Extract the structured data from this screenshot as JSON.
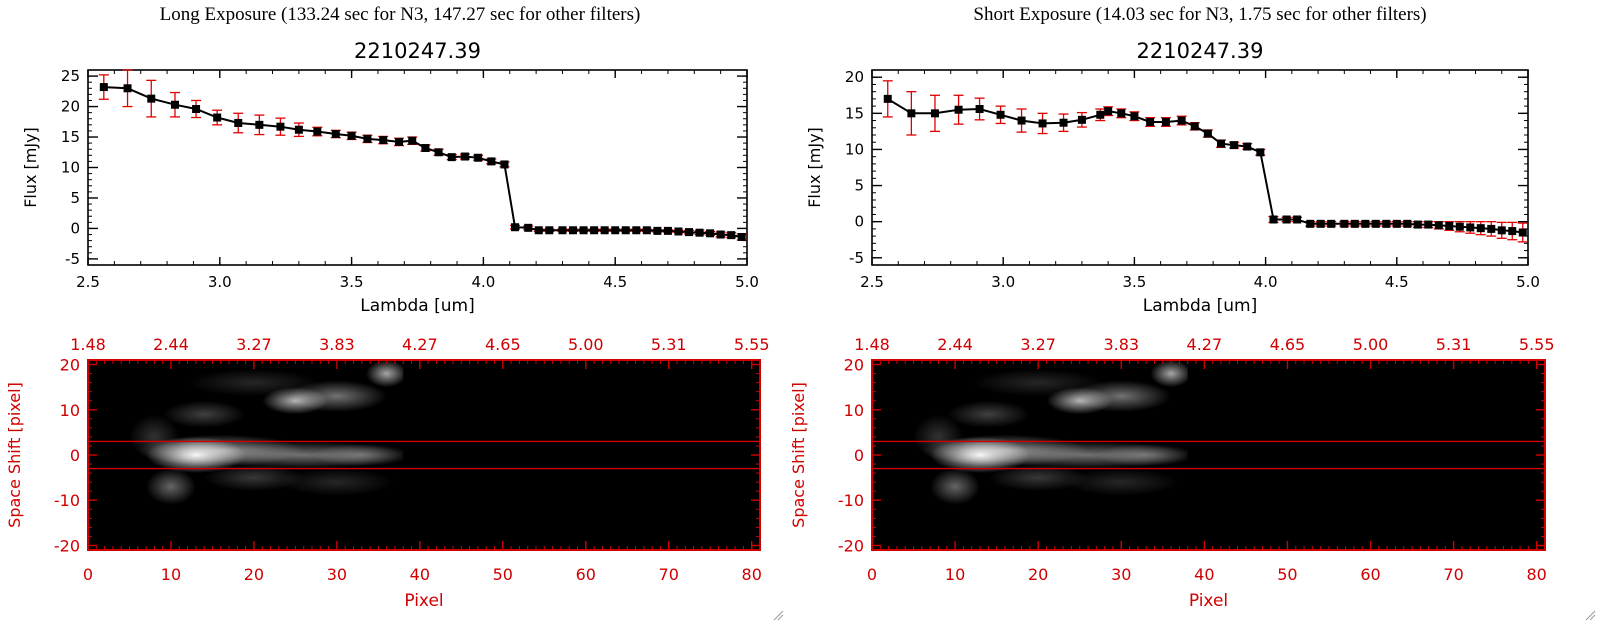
{
  "panels": [
    {
      "title": "Long Exposure (133.24 sec for N3, 147.27 sec for other filters)",
      "spectrum": {
        "type": "line",
        "title": "2210247.39",
        "xlabel": "Lambda [um]",
        "ylabel": "Flux [mJy]",
        "xlim": [
          2.5,
          5.0
        ],
        "ylim": [
          -6,
          26
        ],
        "xticks": [
          "2.5",
          "3.0",
          "3.5",
          "4.0",
          "4.5",
          "5.0"
        ],
        "yticks": [
          "-5",
          "0",
          "5",
          "10",
          "15",
          "20",
          "25"
        ],
        "x": [
          2.56,
          2.65,
          2.74,
          2.83,
          2.91,
          2.99,
          3.07,
          3.15,
          3.23,
          3.3,
          3.37,
          3.44,
          3.5,
          3.56,
          3.62,
          3.68,
          3.73,
          3.78,
          3.83,
          3.88,
          3.93,
          3.98,
          4.03,
          4.08,
          4.12,
          4.17,
          4.21,
          4.25,
          4.3,
          4.34,
          4.38,
          4.42,
          4.46,
          4.5,
          4.54,
          4.58,
          4.62,
          4.66,
          4.7,
          4.74,
          4.78,
          4.82,
          4.86,
          4.9,
          4.94,
          4.98
        ],
        "y": [
          23.2,
          23.0,
          21.3,
          20.3,
          19.6,
          18.2,
          17.3,
          17.0,
          16.7,
          16.2,
          15.9,
          15.5,
          15.2,
          14.7,
          14.5,
          14.2,
          14.4,
          13.2,
          12.5,
          11.7,
          11.8,
          11.6,
          11.0,
          10.5,
          0.2,
          0.1,
          -0.3,
          -0.3,
          -0.3,
          -0.3,
          -0.3,
          -0.3,
          -0.3,
          -0.3,
          -0.3,
          -0.3,
          -0.3,
          -0.4,
          -0.4,
          -0.5,
          -0.6,
          -0.7,
          -0.8,
          -1.0,
          -1.1,
          -1.4
        ],
        "yerr": [
          2.0,
          3.0,
          3.0,
          2.0,
          1.4,
          1.2,
          1.6,
          1.6,
          1.4,
          1.1,
          0.7,
          0.6,
          0.6,
          0.6,
          0.6,
          0.6,
          0.6,
          0.5,
          0.5,
          0.4,
          0.4,
          0.4,
          0.4,
          0.4,
          0.3,
          0.3,
          0.2,
          0.2,
          0.2,
          0.2,
          0.2,
          0.2,
          0.2,
          0.2,
          0.2,
          0.2,
          0.2,
          0.2,
          0.2,
          0.2,
          0.3,
          0.3,
          0.3,
          0.4,
          0.4,
          0.5
        ]
      },
      "image": {
        "type": "heatmap",
        "xlabel": "Pixel",
        "ylabel": "Space Shift [pixel]",
        "xlim": [
          0,
          81
        ],
        "ylim": [
          -21,
          21
        ],
        "bottom_ticks": [
          "0",
          "10",
          "20",
          "30",
          "40",
          "50",
          "60",
          "70",
          "80"
        ],
        "top_ticks": [
          "1.48",
          "2.44",
          "3.27",
          "3.83",
          "4.27",
          "4.65",
          "5.00",
          "5.31",
          "5.55"
        ],
        "yticks": [
          "-20",
          "-10",
          "0",
          "10",
          "20"
        ],
        "aperture": [
          -3,
          3
        ],
        "data_extent_pixel": 38
      }
    },
    {
      "title": "Short Exposure (14.03 sec for N3, 1.75 sec for other filters)",
      "spectrum": {
        "type": "line",
        "title": "2210247.39",
        "xlabel": "Lambda [um]",
        "ylabel": "Flux [mJy]",
        "xlim": [
          2.5,
          5.0
        ],
        "ylim": [
          -6,
          21
        ],
        "xticks": [
          "2.5",
          "3.0",
          "3.5",
          "4.0",
          "4.5",
          "5.0"
        ],
        "yticks": [
          "-5",
          "0",
          "5",
          "10",
          "15",
          "20"
        ],
        "x": [
          2.56,
          2.65,
          2.74,
          2.83,
          2.91,
          2.99,
          3.07,
          3.15,
          3.23,
          3.3,
          3.37,
          3.4,
          3.45,
          3.5,
          3.56,
          3.62,
          3.68,
          3.73,
          3.78,
          3.83,
          3.88,
          3.93,
          3.98,
          4.03,
          4.08,
          4.12,
          4.17,
          4.21,
          4.25,
          4.3,
          4.34,
          4.38,
          4.42,
          4.46,
          4.5,
          4.54,
          4.58,
          4.62,
          4.66,
          4.7,
          4.74,
          4.78,
          4.82,
          4.86,
          4.9,
          4.94,
          4.98
        ],
        "y": [
          17.0,
          15.0,
          15.0,
          15.5,
          15.6,
          14.8,
          14.0,
          13.6,
          13.7,
          14.1,
          14.8,
          15.3,
          15.0,
          14.6,
          13.8,
          13.8,
          14.0,
          13.2,
          12.2,
          10.8,
          10.6,
          10.4,
          9.6,
          0.3,
          0.3,
          0.3,
          -0.3,
          -0.3,
          -0.3,
          -0.3,
          -0.3,
          -0.3,
          -0.3,
          -0.3,
          -0.3,
          -0.3,
          -0.4,
          -0.4,
          -0.5,
          -0.6,
          -0.7,
          -0.8,
          -0.9,
          -1.0,
          -1.2,
          -1.3,
          -1.5
        ],
        "yerr": [
          2.5,
          3.0,
          2.5,
          2.0,
          1.5,
          1.2,
          1.6,
          1.4,
          1.2,
          1.0,
          0.8,
          0.6,
          0.6,
          0.6,
          0.6,
          0.6,
          0.6,
          0.5,
          0.5,
          0.5,
          0.4,
          0.4,
          0.4,
          0.4,
          0.3,
          0.3,
          0.3,
          0.3,
          0.3,
          0.3,
          0.3,
          0.3,
          0.3,
          0.3,
          0.3,
          0.3,
          0.4,
          0.4,
          0.5,
          0.6,
          0.7,
          0.8,
          0.9,
          1.0,
          1.1,
          1.2,
          1.3
        ]
      },
      "image": {
        "type": "heatmap",
        "xlabel": "Pixel",
        "ylabel": "Space Shift [pixel]",
        "xlim": [
          0,
          81
        ],
        "ylim": [
          -21,
          21
        ],
        "bottom_ticks": [
          "0",
          "10",
          "20",
          "30",
          "40",
          "50",
          "60",
          "70",
          "80"
        ],
        "top_ticks": [
          "1.48",
          "2.44",
          "3.27",
          "3.83",
          "4.27",
          "4.65",
          "5.00",
          "5.31",
          "5.55"
        ],
        "yticks": [
          "-20",
          "-10",
          "0",
          "10",
          "20"
        ],
        "aperture": [
          -3,
          3
        ],
        "data_extent_pixel": 38
      }
    }
  ],
  "colors": {
    "line": "#000000",
    "marker": "#000000",
    "error": "#e00000",
    "image_axes": "#d00000",
    "aperture": "#d00000",
    "background": "#000000"
  }
}
